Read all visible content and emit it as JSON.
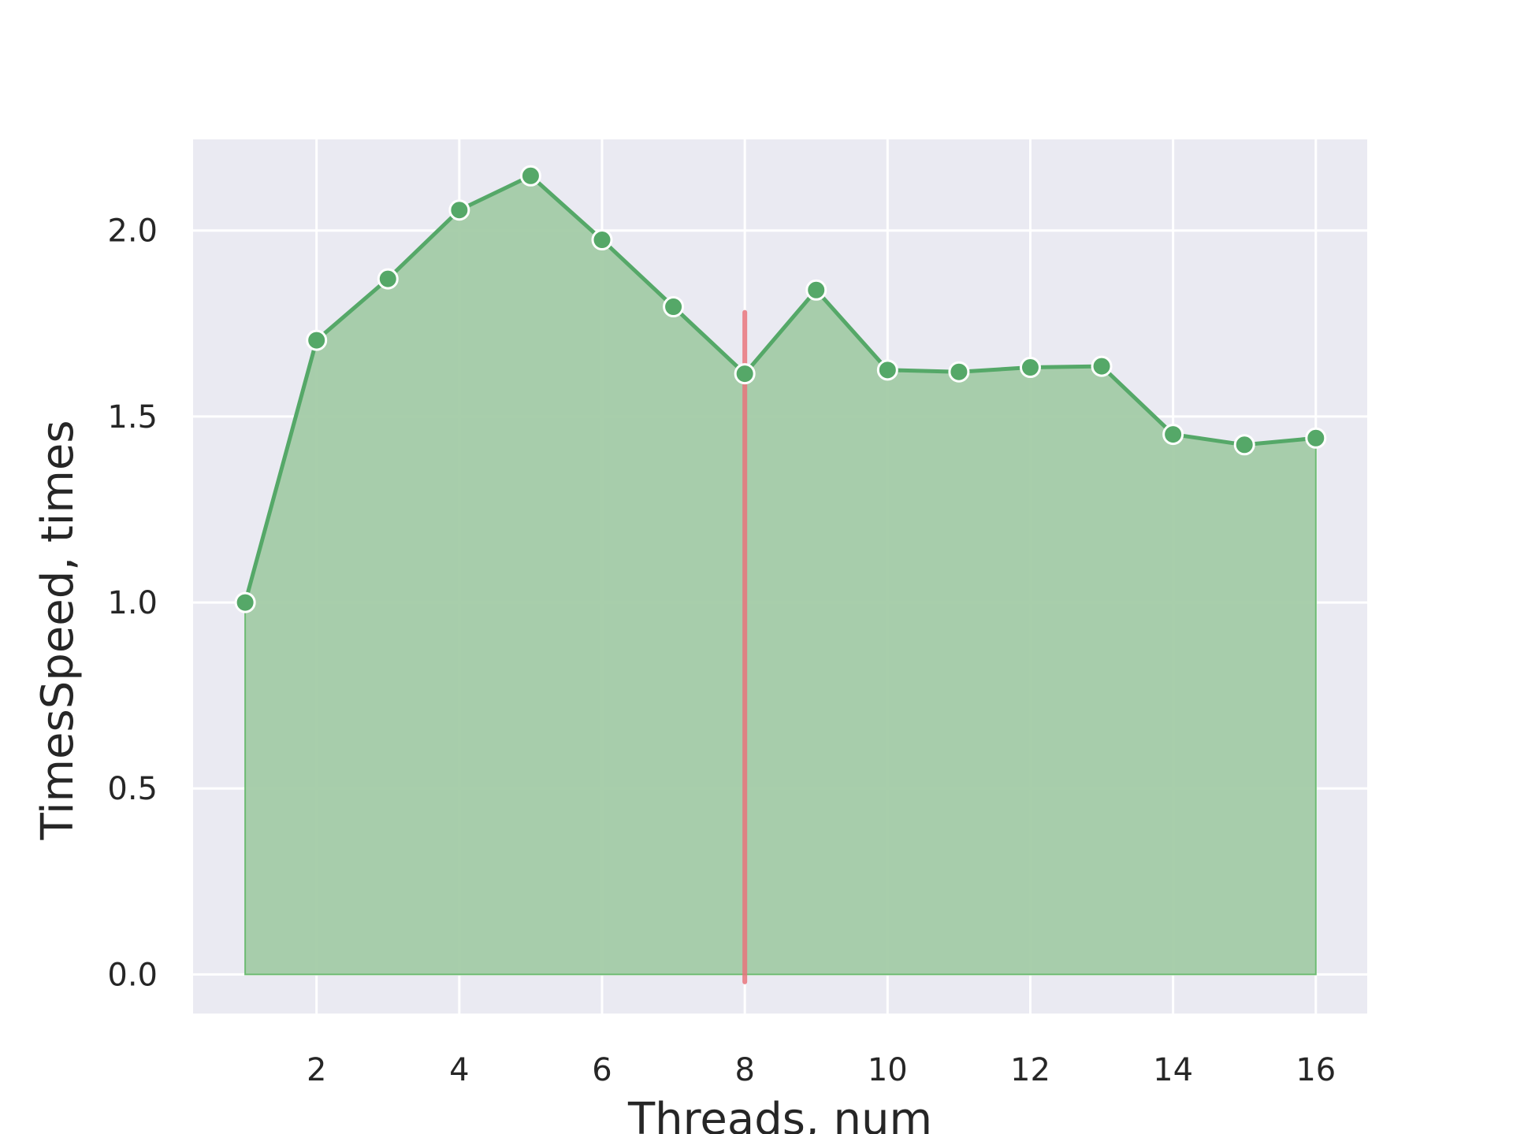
{
  "chart_data": {
    "type": "area",
    "title": "",
    "xlabel": "Threads, num",
    "ylabel": "TimesSpeed, times",
    "xlim": [
      0.27,
      16.72
    ],
    "ylim": [
      -0.105,
      2.245
    ],
    "x_ticks": [
      2,
      4,
      6,
      8,
      10,
      12,
      14,
      16
    ],
    "x_tick_labels": [
      "2",
      "4",
      "6",
      "8",
      "10",
      "12",
      "14",
      "16"
    ],
    "y_ticks": [
      0.0,
      0.5,
      1.0,
      1.5,
      2.0
    ],
    "y_tick_labels": [
      "0.0",
      "0.5",
      "1.0",
      "1.5",
      "2.0"
    ],
    "grid": true,
    "series": [
      {
        "x": [
          1,
          2,
          3,
          4,
          5,
          6,
          7,
          8,
          9,
          10,
          11,
          12,
          13,
          14,
          15,
          16
        ],
        "values": [
          1.0,
          1.705,
          1.87,
          2.055,
          2.147,
          1.975,
          1.795,
          1.615,
          1.84,
          1.625,
          1.62,
          1.632,
          1.635,
          1.452,
          1.424,
          1.442
        ]
      }
    ],
    "vline": {
      "x": 8,
      "ymin": -0.02,
      "ymax": 1.78,
      "color": "#e8737b"
    },
    "colors": {
      "line": "#55a868",
      "fill": "#a3cba7",
      "fill_edge": "#6dbb73",
      "marker_edge": "#ffffff",
      "plot_bg": "#eaeaf2",
      "grid": "#ffffff"
    }
  }
}
